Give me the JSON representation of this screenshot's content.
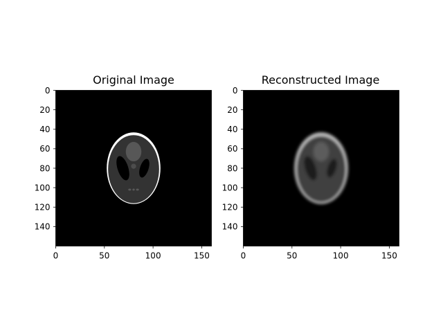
{
  "chart_data": [
    {
      "type": "heatmap",
      "title": "Original Image",
      "colormap": "gray",
      "xlim": [
        0,
        160
      ],
      "ylim": [
        160,
        0
      ],
      "xticks": [
        0,
        50,
        100,
        150
      ],
      "yticks": [
        0,
        20,
        40,
        60,
        80,
        100,
        120,
        140
      ],
      "image": {
        "background": 0.0,
        "ellipses": [
          {
            "role": "skull-rim",
            "cx": 80,
            "cy": 80,
            "rx": 27.6,
            "ry": 36.8,
            "value": 1.0
          },
          {
            "role": "brain",
            "cx": 80,
            "cy": 81,
            "rx": 26.2,
            "ry": 35.0,
            "value": 0.2
          },
          {
            "role": "left-ventricle",
            "cx": 69,
            "cy": 80,
            "rx": 5.5,
            "ry": 13.0,
            "rotate_deg": -18,
            "value": 0.0
          },
          {
            "role": "right-ventricle",
            "cx": 91,
            "cy": 80,
            "rx": 4.4,
            "ry": 10.0,
            "rotate_deg": 18,
            "value": 0.0
          },
          {
            "role": "top-blob",
            "cx": 80,
            "cy": 63,
            "rx": 8.0,
            "ry": 10.0,
            "value": 0.34
          },
          {
            "role": "center-dot",
            "cx": 80,
            "cy": 78,
            "rx": 2.6,
            "ry": 2.6,
            "value": 0.3
          },
          {
            "role": "small-dot-1",
            "cx": 76,
            "cy": 102,
            "rx": 1.5,
            "ry": 1.0,
            "value": 0.35
          },
          {
            "role": "small-dot-2",
            "cx": 80,
            "cy": 102,
            "rx": 1.2,
            "ry": 1.0,
            "value": 0.35
          },
          {
            "role": "small-dot-3",
            "cx": 84,
            "cy": 102,
            "rx": 1.5,
            "ry": 1.0,
            "value": 0.35
          }
        ]
      }
    },
    {
      "type": "heatmap",
      "title": "Reconstructed Image",
      "colormap": "gray",
      "xlim": [
        0,
        160
      ],
      "ylim": [
        160,
        0
      ],
      "xticks": [
        0,
        50,
        100,
        150
      ],
      "yticks": [
        0,
        20,
        40,
        60,
        80,
        100,
        120,
        140
      ],
      "image": {
        "background": 0.0,
        "blurred": true,
        "ellipses": [
          {
            "role": "skull-rim",
            "cx": 80,
            "cy": 80,
            "rx": 27.6,
            "ry": 36.8,
            "value": 0.75
          },
          {
            "role": "brain",
            "cx": 80,
            "cy": 81,
            "rx": 25.2,
            "ry": 34.0,
            "value": 0.25
          },
          {
            "role": "left-ventricle",
            "cx": 69,
            "cy": 80,
            "rx": 5.5,
            "ry": 13.0,
            "rotate_deg": -18,
            "value": 0.1
          },
          {
            "role": "right-ventricle",
            "cx": 91,
            "cy": 80,
            "rx": 4.4,
            "ry": 10.0,
            "rotate_deg": 18,
            "value": 0.1
          },
          {
            "role": "top-blob",
            "cx": 80,
            "cy": 63,
            "rx": 8.0,
            "ry": 10.0,
            "value": 0.36
          }
        ]
      }
    }
  ]
}
